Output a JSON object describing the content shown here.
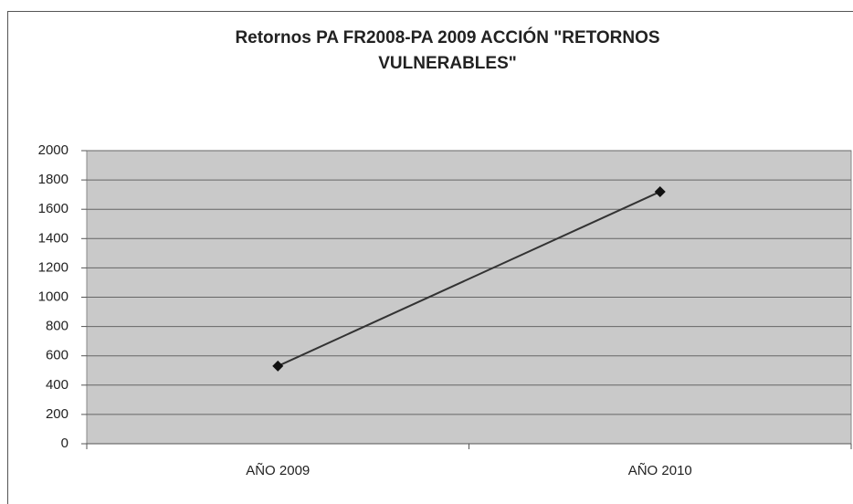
{
  "chart_data": {
    "type": "line",
    "title": "Retornos PA FR2008-PA 2009 ACCIÓN \"RETORNOS VULNERABLES\"",
    "categories": [
      "AÑO 2009",
      "AÑO 2010"
    ],
    "values": [
      530,
      1720
    ],
    "color": "#333333",
    "ylim": [
      0,
      2000
    ],
    "yticks": [
      0,
      200,
      400,
      600,
      800,
      1000,
      1200,
      1400,
      1600,
      1800,
      2000
    ],
    "grid": true
  }
}
